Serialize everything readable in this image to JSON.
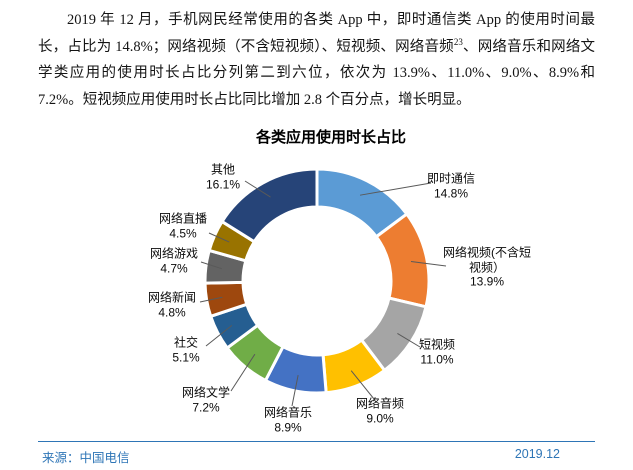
{
  "paragraph": {
    "part1": "2019 年 12 月，手机网民经常使用的各类 App 中，即时通信类 App 的使用时间最长，占比为 14.8%；网络视频（不含短视频）、短视频、网络音频",
    "superscript": "23",
    "part2": "、网络音乐和网络文学类应用的使用时长占比分列第二到六位，依次为 13.9%、11.0%、9.0%、8.9%和 7.2%。短视频应用使用时长占比同比增加 2.8 个百分点，增长明显。"
  },
  "chart_data": {
    "type": "pie",
    "subtype": "donut",
    "title": "各类应用使用时长占比",
    "unit": "%",
    "start_angle_deg": 0,
    "direction": "clockwise",
    "slices": [
      {
        "key": "instant-messaging",
        "label": "即时通信",
        "label_lines": [
          "即时通信"
        ],
        "value": 14.8,
        "pct_label": "14.8%",
        "color": "#5B9BD5"
      },
      {
        "key": "online-video",
        "label": "网络视频(不含短视频）",
        "label_lines": [
          "网络视频(不含短",
          "视频）"
        ],
        "value": 13.9,
        "pct_label": "13.9%",
        "color": "#ED7D31"
      },
      {
        "key": "short-video",
        "label": "短视频",
        "label_lines": [
          "短视频"
        ],
        "value": 11.0,
        "pct_label": "11.0%",
        "color": "#A5A5A5"
      },
      {
        "key": "online-audio",
        "label": "网络音频",
        "label_lines": [
          "网络音频"
        ],
        "value": 9.0,
        "pct_label": "9.0%",
        "color": "#FFC000"
      },
      {
        "key": "online-music",
        "label": "网络音乐",
        "label_lines": [
          "网络音乐"
        ],
        "value": 8.9,
        "pct_label": "8.9%",
        "color": "#4472C4"
      },
      {
        "key": "online-literature",
        "label": "网络文学",
        "label_lines": [
          "网络文学"
        ],
        "value": 7.2,
        "pct_label": "7.2%",
        "color": "#70AD47"
      },
      {
        "key": "social",
        "label": "社交",
        "label_lines": [
          "社交"
        ],
        "value": 5.1,
        "pct_label": "5.1%",
        "color": "#255E91"
      },
      {
        "key": "online-news",
        "label": "网络新闻",
        "label_lines": [
          "网络新闻"
        ],
        "value": 4.8,
        "pct_label": "4.8%",
        "color": "#9E480E"
      },
      {
        "key": "online-games",
        "label": "网络游戏",
        "label_lines": [
          "网络游戏"
        ],
        "value": 4.7,
        "pct_label": "4.7%",
        "color": "#636363"
      },
      {
        "key": "live-streaming",
        "label": "网络直播",
        "label_lines": [
          "网络直播"
        ],
        "value": 4.5,
        "pct_label": "4.5%",
        "color": "#997300"
      },
      {
        "key": "others",
        "label": "其他",
        "label_lines": [
          "其他"
        ],
        "value": 16.1,
        "pct_label": "16.1%",
        "color": "#264478"
      }
    ]
  },
  "footer": {
    "source": "来源：中国电信",
    "date": "2019.12",
    "accent_color": "#2E75B6"
  }
}
